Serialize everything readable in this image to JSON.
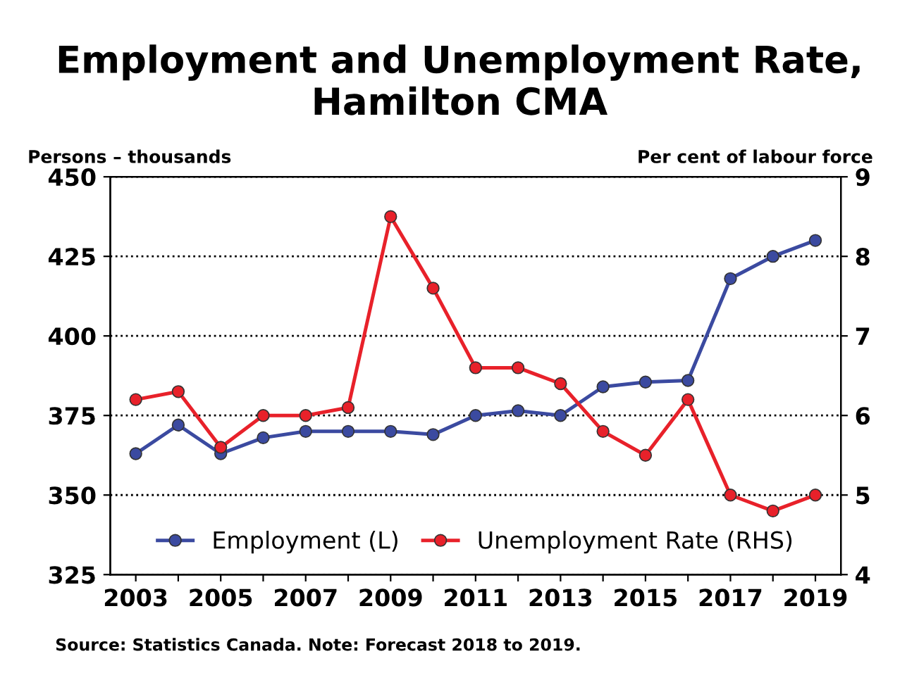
{
  "chart_data": {
    "type": "line",
    "title": "Employment and Unemployment Rate,\nHamilton CMA",
    "ylabel": "Persons – thousands",
    "y2label": "Per cent of labour force",
    "x": [
      2003,
      2004,
      2005,
      2006,
      2007,
      2008,
      2009,
      2010,
      2011,
      2012,
      2013,
      2014,
      2015,
      2016,
      2017,
      2018,
      2019
    ],
    "series": [
      {
        "name": "Employment (L)",
        "color": "#3b4aa0",
        "values": [
          363,
          372,
          363,
          368,
          370,
          370,
          370,
          369,
          375,
          376.5,
          375,
          384,
          385.5,
          386,
          418,
          425,
          430
        ]
      },
      {
        "name": "Unemployment Rate (RHS)",
        "color": "#e8212a",
        "axis": "y2",
        "values": [
          6.2,
          6.3,
          5.6,
          6.0,
          6.0,
          6.1,
          8.5,
          7.6,
          6.6,
          6.6,
          6.4,
          5.8,
          5.5,
          6.2,
          5.0,
          4.8,
          5.0
        ]
      }
    ],
    "xlim": [
      2002.4,
      2019.6
    ],
    "xticks": [
      2003,
      {
        "value": 2004,
        "label": null
      },
      2005,
      {
        "value": 2006,
        "label": null
      },
      2007,
      {
        "value": 2008,
        "label": null
      },
      2009,
      {
        "value": 2010,
        "label": null
      },
      2011,
      {
        "value": 2012,
        "label": null
      },
      2013,
      {
        "value": 2014,
        "label": null
      },
      2015,
      {
        "value": 2016,
        "label": null
      },
      2017,
      {
        "value": 2018,
        "label": null
      },
      2019
    ],
    "ylim": [
      325,
      450
    ],
    "yticks": [
      325,
      350,
      375,
      400,
      425,
      450
    ],
    "y2lim": [
      4,
      9
    ],
    "y2ticks": [
      4,
      5,
      6,
      7,
      8,
      9
    ],
    "grid": "y",
    "legend": "bottom",
    "marker": "circle",
    "line_style": "solid",
    "annotations": [
      "Source: Statistics Canada. Note: Forecast 2018 to 2019."
    ]
  }
}
